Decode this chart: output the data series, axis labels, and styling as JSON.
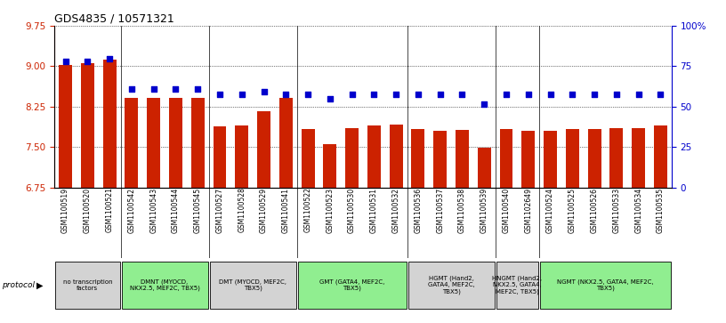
{
  "title": "GDS4835 / 10571321",
  "samples": [
    "GSM1100519",
    "GSM1100520",
    "GSM1100521",
    "GSM1100542",
    "GSM1100543",
    "GSM1100544",
    "GSM1100545",
    "GSM1100527",
    "GSM1100528",
    "GSM1100529",
    "GSM1100541",
    "GSM1100522",
    "GSM1100523",
    "GSM1100530",
    "GSM1100531",
    "GSM1100532",
    "GSM1100536",
    "GSM1100537",
    "GSM1100538",
    "GSM1100539",
    "GSM1100540",
    "GSM1102649",
    "GSM1100524",
    "GSM1100525",
    "GSM1100526",
    "GSM1100533",
    "GSM1100534",
    "GSM1100535"
  ],
  "bar_values": [
    9.02,
    9.05,
    9.12,
    8.42,
    8.42,
    8.42,
    8.42,
    7.88,
    7.9,
    8.17,
    8.42,
    7.83,
    7.55,
    7.85,
    7.9,
    7.92,
    7.84,
    7.8,
    7.82,
    7.48,
    7.83,
    7.8,
    7.8,
    7.83,
    7.84,
    7.85,
    7.85,
    7.9
  ],
  "dot_values": [
    78.0,
    78.0,
    79.5,
    61.0,
    61.0,
    61.0,
    61.0,
    57.5,
    57.5,
    59.5,
    57.5,
    57.5,
    55.0,
    57.5,
    57.5,
    57.5,
    57.5,
    57.5,
    57.5,
    51.5,
    57.5,
    57.5,
    57.5,
    57.5,
    57.5,
    57.5,
    57.5,
    57.5
  ],
  "ylim_left": [
    6.75,
    9.75
  ],
  "yticks_left": [
    6.75,
    7.5,
    8.25,
    9.0,
    9.75
  ],
  "ylim_right": [
    0,
    100
  ],
  "yticks_right": [
    0,
    25,
    50,
    75,
    100
  ],
  "bar_color": "#CC2200",
  "dot_color": "#0000CC",
  "groups": [
    {
      "label": "no transcription\nfactors",
      "start": 0,
      "end": 3,
      "color": "#d3d3d3"
    },
    {
      "label": "DMNT (MYOCD,\nNKX2.5, MEF2C, TBX5)",
      "start": 3,
      "end": 7,
      "color": "#90EE90"
    },
    {
      "label": "DMT (MYOCD, MEF2C,\nTBX5)",
      "start": 7,
      "end": 11,
      "color": "#d3d3d3"
    },
    {
      "label": "GMT (GATA4, MEF2C,\nTBX5)",
      "start": 11,
      "end": 16,
      "color": "#90EE90"
    },
    {
      "label": "HGMT (Hand2,\nGATA4, MEF2C,\nTBX5)",
      "start": 16,
      "end": 20,
      "color": "#d3d3d3"
    },
    {
      "label": "HNGMT (Hand2,\nNKX2.5, GATA4,\nMEF2C, TBX5)",
      "start": 20,
      "end": 22,
      "color": "#d3d3d3"
    },
    {
      "label": "NGMT (NKX2.5, GATA4, MEF2C,\nTBX5)",
      "start": 22,
      "end": 28,
      "color": "#90EE90"
    }
  ],
  "title_fontsize": 9,
  "bar_width": 0.6
}
